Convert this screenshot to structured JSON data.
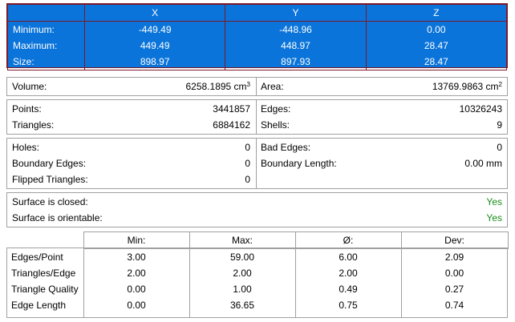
{
  "bbox": {
    "headers": [
      "X",
      "Y",
      "Z"
    ],
    "rows": [
      {
        "label": "Minimum:",
        "x": "-449.49",
        "y": "-448.96",
        "z": "0.00"
      },
      {
        "label": "Maximum:",
        "x": "449.49",
        "y": "448.97",
        "z": "28.47"
      },
      {
        "label": "Size:",
        "x": "898.97",
        "y": "897.93",
        "z": "28.47"
      }
    ]
  },
  "volume": {
    "label": "Volume:",
    "value": "6258.1895 cm",
    "unit_exp": "3"
  },
  "area": {
    "label": "Area:",
    "value": "13769.9863 cm",
    "unit_exp": "2"
  },
  "points": {
    "label": "Points:",
    "value": "3441857"
  },
  "triangles": {
    "label": "Triangles:",
    "value": "6884162"
  },
  "edges": {
    "label": "Edges:",
    "value": "10326243"
  },
  "shells": {
    "label": "Shells:",
    "value": "9"
  },
  "holes": {
    "label": "Holes:",
    "value": "0"
  },
  "boundary_edges": {
    "label": "Boundary Edges:",
    "value": "0"
  },
  "flipped_triangles": {
    "label": "Flipped Triangles:",
    "value": "0"
  },
  "bad_edges": {
    "label": "Bad Edges:",
    "value": "0"
  },
  "boundary_length": {
    "label": "Boundary Length:",
    "value": "0.00 mm"
  },
  "surface_closed": {
    "label": "Surface is closed:",
    "value": "Yes"
  },
  "surface_orientable": {
    "label": "Surface is orientable:",
    "value": "Yes"
  },
  "stats": {
    "headers": [
      "Min:",
      "Max:",
      "Ø:",
      "Dev:"
    ],
    "rows": [
      {
        "name": "Edges/Point",
        "min": "3.00",
        "max": "59.00",
        "avg": "6.00",
        "dev": "2.09"
      },
      {
        "name": "Triangles/Edge",
        "min": "2.00",
        "max": "2.00",
        "avg": "2.00",
        "dev": "0.00"
      },
      {
        "name": "Triangle Quality",
        "min": "0.00",
        "max": "1.00",
        "avg": "0.49",
        "dev": "0.27"
      },
      {
        "name": "Edge Length",
        "min": "0.00",
        "max": "36.65",
        "avg": "0.75",
        "dev": "0.74"
      }
    ]
  },
  "colors": {
    "bbox_bg": "#0a74da",
    "bbox_border": "#7a1a2a",
    "yes_green": "#1a8c1a"
  }
}
